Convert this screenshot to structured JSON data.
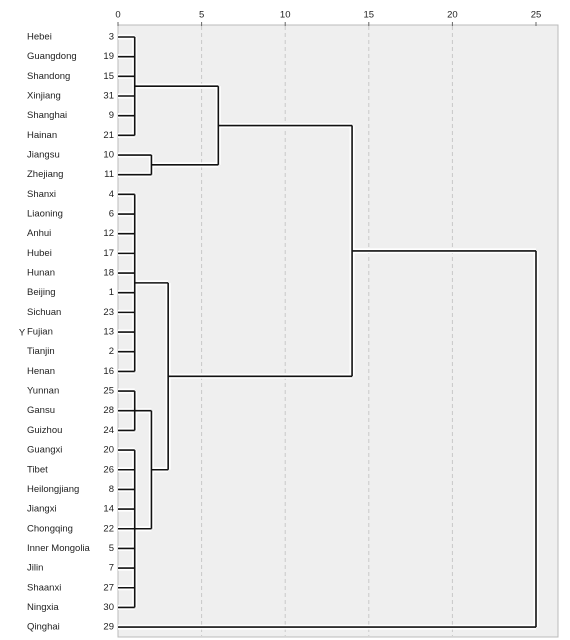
{
  "chart_data": {
    "type": "dendrogram",
    "y_label": "Y",
    "xlim": [
      0,
      25
    ],
    "xticks": [
      0,
      5,
      10,
      15,
      20,
      25
    ],
    "grid": true,
    "leaves": [
      {
        "label": "Hebei",
        "id": 3
      },
      {
        "label": "Guangdong",
        "id": 19
      },
      {
        "label": "Shandong",
        "id": 15
      },
      {
        "label": "Xinjiang",
        "id": 31
      },
      {
        "label": "Shanghai",
        "id": 9
      },
      {
        "label": "Hainan",
        "id": 21
      },
      {
        "label": "Jiangsu",
        "id": 10
      },
      {
        "label": "Zhejiang",
        "id": 11
      },
      {
        "label": "Shanxi",
        "id": 4
      },
      {
        "label": "Liaoning",
        "id": 6
      },
      {
        "label": "Anhui",
        "id": 12
      },
      {
        "label": "Hubei",
        "id": 17
      },
      {
        "label": "Hunan",
        "id": 18
      },
      {
        "label": "Beijing",
        "id": 1
      },
      {
        "label": "Sichuan",
        "id": 23
      },
      {
        "label": "Fujian",
        "id": 13
      },
      {
        "label": "Tianjin",
        "id": 2
      },
      {
        "label": "Henan",
        "id": 16
      },
      {
        "label": "Yunnan",
        "id": 25
      },
      {
        "label": "Gansu",
        "id": 28
      },
      {
        "label": "Guizhou",
        "id": 24
      },
      {
        "label": "Guangxi",
        "id": 20
      },
      {
        "label": "Tibet",
        "id": 26
      },
      {
        "label": "Heilongjiang",
        "id": 8
      },
      {
        "label": "Jiangxi",
        "id": 14
      },
      {
        "label": "Chongqing",
        "id": 22
      },
      {
        "label": "Inner Mongolia",
        "id": 5
      },
      {
        "label": "Jilin",
        "id": 7
      },
      {
        "label": "Shaanxi",
        "id": 27
      },
      {
        "label": "Ningxia",
        "id": 30
      },
      {
        "label": "Qinghai",
        "id": 29
      }
    ],
    "merges": [
      {
        "leaves": [
          0,
          5
        ],
        "height": 1
      },
      {
        "leaves": [
          6,
          7
        ],
        "height": 2
      },
      {
        "leaves": [
          0,
          7
        ],
        "height": 6
      },
      {
        "leaves": [
          8,
          17
        ],
        "height": 1
      },
      {
        "leaves": [
          18,
          20
        ],
        "height": 1
      },
      {
        "leaves": [
          21,
          29
        ],
        "height": 1
      },
      {
        "leaves": [
          18,
          29
        ],
        "height": 2
      },
      {
        "leaves": [
          8,
          29
        ],
        "height": 3
      },
      {
        "leaves": [
          0,
          29
        ],
        "height": 14
      },
      {
        "leaves": [
          0,
          30
        ],
        "height": 25
      }
    ]
  }
}
